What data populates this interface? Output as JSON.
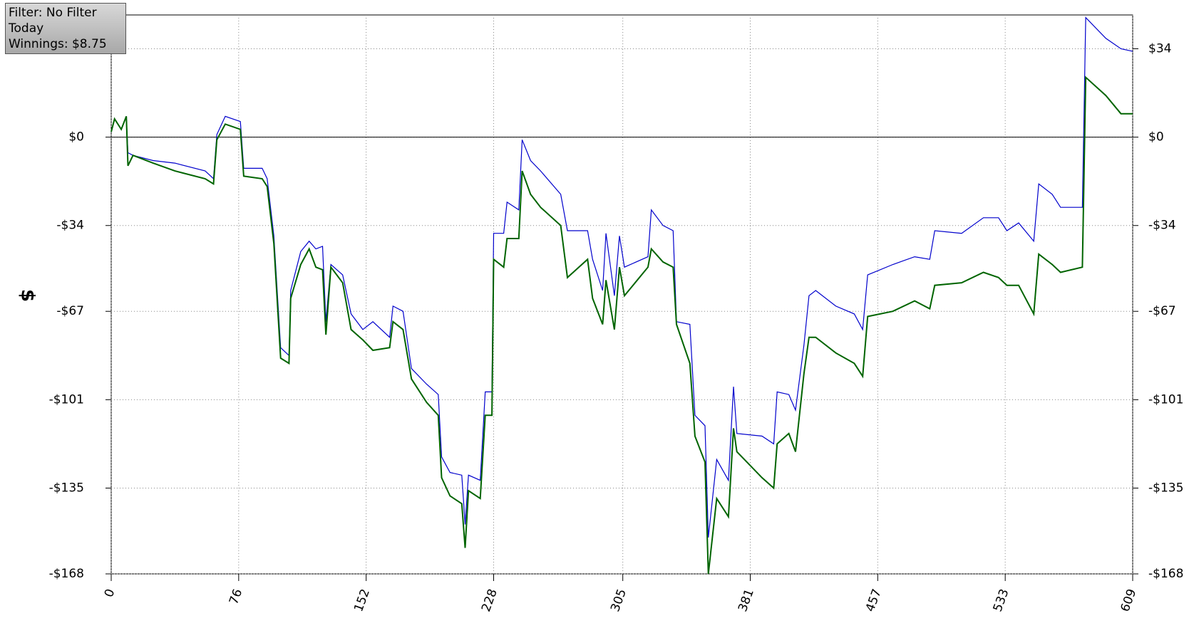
{
  "chart_data": {
    "type": "line",
    "info": [
      "Filter: No Filter",
      "Today",
      "Winnings: $8.75"
    ],
    "ylabel": "$",
    "xlim": [
      0,
      609
    ],
    "xticks": [
      0,
      76,
      152,
      228,
      305,
      381,
      457,
      533,
      609
    ],
    "ylim": [
      -168,
      47
    ],
    "yticks": [
      {
        "value": 34,
        "label": "$34"
      },
      0,
      {
        "value": 0,
        "label": "$0"
      },
      {
        "value": -34,
        "label": "-$34"
      },
      {
        "value": -67,
        "label": "-$67"
      },
      {
        "value": -101,
        "label": "-$101"
      },
      {
        "value": -135,
        "label": "-$135"
      },
      {
        "value": -168,
        "label": "-$168"
      }
    ],
    "zero_line": 0,
    "grid": true,
    "series": [
      {
        "color": "#0000cc",
        "x": [
          0,
          2,
          6,
          9,
          10,
          13,
          25,
          38,
          56,
          61,
          63,
          68,
          77,
          79,
          90,
          93,
          97,
          101,
          106,
          107,
          113,
          118,
          122,
          126,
          128,
          131,
          138,
          143,
          150,
          156,
          166,
          168,
          174,
          179,
          188,
          195,
          197,
          202,
          209,
          211,
          213,
          220,
          223,
          227,
          228,
          234,
          236,
          243,
          245,
          250,
          256,
          268,
          272,
          284,
          287,
          293,
          295,
          300,
          303,
          306,
          320,
          322,
          329,
          335,
          337,
          345,
          348,
          354,
          356,
          361,
          368,
          371,
          373,
          388,
          395,
          397,
          404,
          408,
          413,
          416,
          420,
          432,
          443,
          448,
          451,
          466,
          479,
          488,
          491,
          507,
          520,
          529,
          534,
          541,
          550,
          553,
          561,
          566,
          579,
          581,
          593,
          602,
          609
        ],
        "values": [
          2,
          7,
          3,
          8,
          -6,
          -7,
          -9,
          -10,
          -13,
          -16,
          1,
          8,
          6,
          -12,
          -12,
          -16,
          -38,
          -81,
          -84,
          -59,
          -44,
          -40,
          -43,
          -42,
          -71,
          -49,
          -53,
          -68,
          -74,
          -71,
          -77,
          -65,
          -67,
          -89,
          -95,
          -99,
          -123,
          -129,
          -130,
          -149,
          -130,
          -132,
          -98,
          -98,
          -37,
          -37,
          -25,
          -28,
          -1,
          -9,
          -13,
          -22,
          -36,
          -36,
          -47,
          -59,
          -37,
          -61,
          -38,
          -50,
          -46,
          -28,
          -34,
          -36,
          -71,
          -72,
          -107,
          -111,
          -154,
          -124,
          -132,
          -96,
          -114,
          -115,
          -118,
          -98,
          -99,
          -105,
          -80,
          -61,
          -59,
          -65,
          -68,
          -74,
          -53,
          -49,
          -46,
          -47,
          -36,
          -37,
          -31,
          -31,
          -36,
          -33,
          -40,
          -18,
          -22,
          -27,
          -27,
          46,
          38,
          34,
          33
        ]
      },
      {
        "color": "#006400",
        "x": [
          0,
          2,
          6,
          9,
          10,
          13,
          25,
          38,
          56,
          61,
          63,
          68,
          77,
          79,
          90,
          93,
          97,
          101,
          106,
          107,
          113,
          118,
          122,
          126,
          128,
          131,
          138,
          143,
          150,
          156,
          166,
          168,
          174,
          179,
          188,
          195,
          197,
          202,
          209,
          211,
          213,
          220,
          223,
          227,
          228,
          234,
          236,
          243,
          245,
          250,
          256,
          268,
          272,
          284,
          287,
          293,
          295,
          300,
          303,
          306,
          320,
          322,
          329,
          335,
          337,
          345,
          348,
          354,
          356,
          361,
          368,
          371,
          373,
          388,
          395,
          397,
          404,
          408,
          413,
          416,
          420,
          432,
          443,
          448,
          451,
          466,
          479,
          488,
          491,
          507,
          520,
          529,
          534,
          541,
          550,
          553,
          561,
          566,
          579,
          581,
          593,
          602,
          609
        ],
        "values": [
          2,
          7,
          3,
          8,
          -11,
          -7,
          -10,
          -13,
          -16,
          -18,
          -1,
          5,
          3,
          -15,
          -16,
          -19,
          -41,
          -85,
          -87,
          -62,
          -49,
          -43,
          -50,
          -51,
          -76,
          -50,
          -56,
          -74,
          -78,
          -82,
          -81,
          -71,
          -74,
          -93,
          -102,
          -107,
          -131,
          -138,
          -141,
          -158,
          -136,
          -139,
          -107,
          -107,
          -47,
          -50,
          -39,
          -39,
          -13,
          -22,
          -27,
          -34,
          -54,
          -47,
          -62,
          -72,
          -55,
          -74,
          -50,
          -61,
          -50,
          -43,
          -48,
          -50,
          -72,
          -87,
          -115,
          -125,
          -168,
          -139,
          -146,
          -112,
          -121,
          -131,
          -135,
          -118,
          -114,
          -121,
          -91,
          -77,
          -77,
          -83,
          -87,
          -92,
          -69,
          -67,
          -63,
          -66,
          -57,
          -56,
          -52,
          -54,
          -57,
          -57,
          -68,
          -45,
          -49,
          -52,
          -50,
          23,
          16,
          9,
          9
        ]
      }
    ]
  }
}
